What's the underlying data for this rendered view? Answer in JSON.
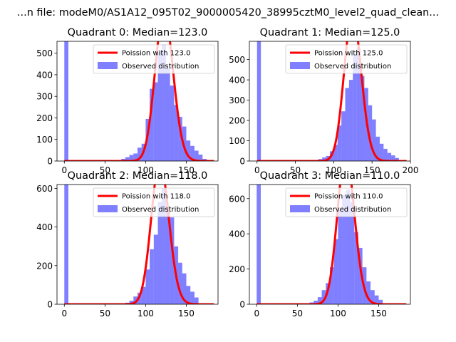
{
  "figure": {
    "suptitle": "...n file: modeM0/AS1A12_095T02_9000005420_38995cztM0_level2_quad_clean..."
  },
  "chart_data": [
    {
      "type": "bar",
      "title": "Quadrant 0: Median=123.0",
      "xlabel": "",
      "ylabel": "",
      "xlim": [
        -9,
        189
      ],
      "ylim": [
        0,
        555
      ],
      "xticks": [
        0,
        50,
        100,
        150
      ],
      "yticks": [
        0,
        100,
        200,
        300,
        400,
        500
      ],
      "legend_position": "upper right",
      "legend": [
        "Poission with 123.0",
        "Observed distribution"
      ],
      "fit": {
        "name": "Poission with 123.0",
        "lambda": 123.0,
        "color": "#ff0000"
      },
      "observed": {
        "name": "Observed distribution",
        "color": "#0000ff",
        "x": [
          0,
          65,
          70,
          75,
          80,
          85,
          90,
          95,
          100,
          105,
          110,
          115,
          120,
          125,
          130,
          135,
          140,
          145,
          150,
          155,
          160,
          165,
          170
        ],
        "y": [
          560,
          3,
          10,
          18,
          28,
          35,
          62,
          80,
          195,
          335,
          365,
          505,
          540,
          430,
          350,
          260,
          205,
          160,
          95,
          70,
          48,
          30,
          10
        ]
      }
    },
    {
      "type": "bar",
      "title": "Quadrant 1: Median=125.0",
      "xlabel": "",
      "ylabel": "",
      "xlim": [
        -10,
        200
      ],
      "ylim": [
        0,
        590
      ],
      "xticks": [
        0,
        50,
        100,
        150,
        200
      ],
      "yticks": [
        0,
        100,
        200,
        300,
        400,
        500
      ],
      "legend_position": "upper right",
      "legend": [
        "Poission with 125.0",
        "Observed distribution"
      ],
      "fit": {
        "name": "Poission with 125.0",
        "lambda": 125.0,
        "color": "#ff0000"
      },
      "observed": {
        "name": "Observed distribution",
        "color": "#0000ff",
        "x": [
          0,
          75,
          80,
          85,
          90,
          95,
          100,
          105,
          110,
          115,
          120,
          125,
          130,
          135,
          140,
          145,
          150,
          155,
          160,
          165,
          170,
          175,
          180
        ],
        "y": [
          600,
          5,
          10,
          18,
          25,
          48,
          80,
          175,
          245,
          360,
          400,
          525,
          560,
          420,
          360,
          275,
          205,
          120,
          85,
          60,
          40,
          28,
          15
        ]
      }
    },
    {
      "type": "bar",
      "title": "Quadrant 2: Median=118.0",
      "xlabel": "",
      "ylabel": "",
      "xlim": [
        -9,
        189
      ],
      "ylim": [
        0,
        620
      ],
      "xticks": [
        0,
        50,
        100,
        150
      ],
      "yticks": [
        0,
        200,
        400,
        600
      ],
      "legend_position": "upper right",
      "legend": [
        "Poission with 118.0",
        "Observed distribution"
      ],
      "fit": {
        "name": "Poission with 118.0",
        "lambda": 118.0,
        "color": "#ff0000"
      },
      "observed": {
        "name": "Observed distribution",
        "color": "#0000ff",
        "x": [
          0,
          75,
          80,
          85,
          90,
          95,
          100,
          105,
          110,
          115,
          120,
          125,
          130,
          135,
          140,
          145,
          150,
          155,
          160
        ],
        "y": [
          640,
          8,
          18,
          40,
          60,
          90,
          180,
          285,
          360,
          530,
          600,
          510,
          450,
          300,
          215,
          160,
          95,
          65,
          35
        ]
      }
    },
    {
      "type": "bar",
      "title": "Quadrant 3: Median=110.0",
      "xlabel": "",
      "ylabel": "",
      "xlim": [
        -9,
        189
      ],
      "ylim": [
        0,
        680
      ],
      "xticks": [
        0,
        50,
        100,
        150
      ],
      "yticks": [
        0,
        200,
        400,
        600
      ],
      "legend_position": "upper right",
      "legend": [
        "Poission with 110.0",
        "Observed distribution"
      ],
      "fit": {
        "name": "Poission with 110.0",
        "lambda": 110.0,
        "color": "#ff0000"
      },
      "observed": {
        "name": "Observed distribution",
        "color": "#0000ff",
        "x": [
          0,
          60,
          65,
          70,
          75,
          80,
          85,
          90,
          95,
          100,
          105,
          110,
          115,
          120,
          125,
          130,
          135,
          140,
          145,
          150
        ],
        "y": [
          700,
          5,
          10,
          20,
          40,
          80,
          120,
          210,
          370,
          540,
          620,
          650,
          580,
          410,
          320,
          210,
          130,
          80,
          50,
          25
        ]
      }
    }
  ]
}
